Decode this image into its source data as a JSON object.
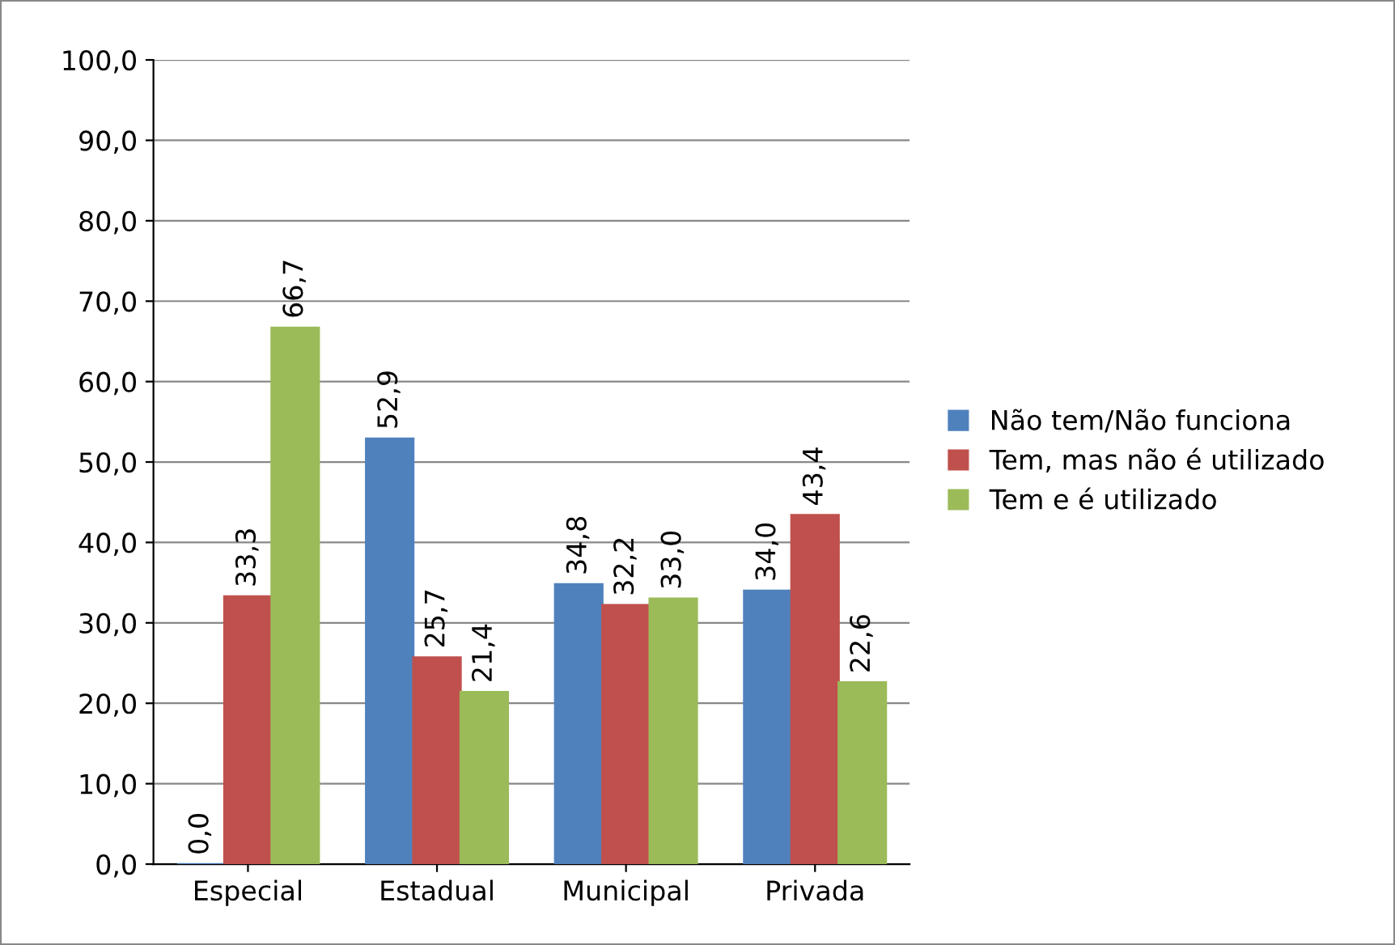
{
  "chart_data": {
    "type": "bar",
    "categories": [
      "Especial",
      "Estadual",
      "Municipal",
      "Privada"
    ],
    "series": [
      {
        "name": "Não tem/Não funciona",
        "color": "#4f81bd",
        "values": [
          0.0,
          52.9,
          34.8,
          34.0
        ],
        "value_labels": [
          "0,0",
          "52,9",
          "34,8",
          "34,0"
        ]
      },
      {
        "name": "Tem, mas não é utilizado",
        "color": "#c0504d",
        "values": [
          33.3,
          25.7,
          32.2,
          43.4
        ],
        "value_labels": [
          "33,3",
          "25,7",
          "32,2",
          "43,4"
        ]
      },
      {
        "name": "Tem e é utilizado",
        "color": "#9bbb59",
        "values": [
          66.7,
          21.4,
          33.0,
          22.6
        ],
        "value_labels": [
          "66,7",
          "21,4",
          "33,0",
          "22,6"
        ]
      }
    ],
    "ylim": [
      0,
      100
    ],
    "yticks": [
      {
        "value": 0,
        "label": "0,0"
      },
      {
        "value": 10,
        "label": "10,0"
      },
      {
        "value": 20,
        "label": "20,0"
      },
      {
        "value": 30,
        "label": "30,0"
      },
      {
        "value": 40,
        "label": "40,0"
      },
      {
        "value": 50,
        "label": "50,0"
      },
      {
        "value": 60,
        "label": "60,0"
      },
      {
        "value": 70,
        "label": "70,0"
      },
      {
        "value": 80,
        "label": "80,0"
      },
      {
        "value": 90,
        "label": "90,0"
      },
      {
        "value": 100,
        "label": "100,0"
      }
    ],
    "grid": "y",
    "legend": "right"
  }
}
